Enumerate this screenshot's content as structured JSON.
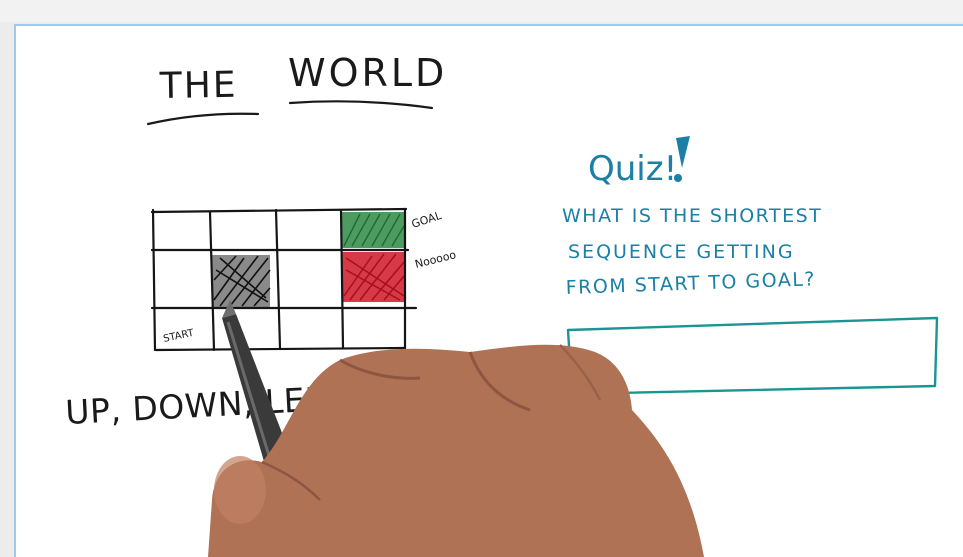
{
  "title": {
    "word1": "THE",
    "word2": "WORLD"
  },
  "grid": {
    "goal_label": "GOAL",
    "bad_label": "Nooooo",
    "start_label": "START",
    "colors": {
      "ink": "#151515",
      "goal_cell": "#2f8a45",
      "bad_cell": "#d21e2e",
      "wall_cell": "#1c1c1c"
    }
  },
  "actions": {
    "text": "UP, DOWN, LEFT, RIGHT"
  },
  "quiz": {
    "heading": "Quiz!",
    "line1": "WHAT IS THE SHORTEST",
    "line2": "SEQUENCE GETTING",
    "line3": "FROM START TO GOAL?",
    "answer_value": "",
    "color": "#1b7fa6",
    "box_color": "#1a9494"
  },
  "colors": {
    "board_border": "#9fc9ea",
    "skin": "#b07255",
    "pen": "#3a3a3a"
  }
}
